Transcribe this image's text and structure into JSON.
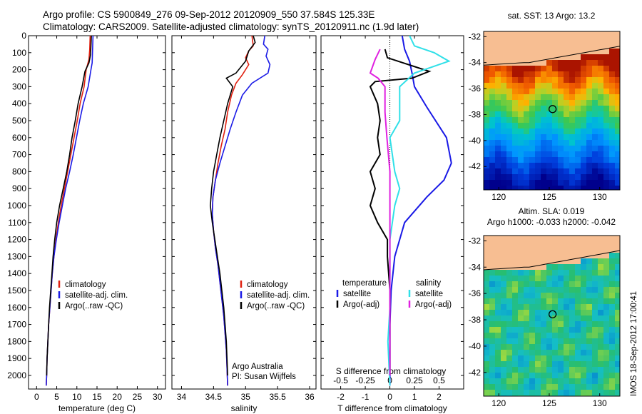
{
  "header": {
    "line1": "Argo profile: CS 5900849_276 09-Sep-2012 20120909_550 37.584S 125.33E",
    "line2": "Climatology: CARS2009. Satellite-adjusted climatology: synTS_20120911.nc (1.9d later)"
  },
  "colors": {
    "climatology": "#e02010",
    "satellite": "#1a1ae6",
    "argo": "#000000",
    "sat_salinity": "#30e0e8",
    "argo_salinity": "#e020e0",
    "land": "#f7be92"
  },
  "side_text": "IMOS 18-Sep-2012 17:00:41",
  "credit": {
    "line1": "Argo Australia",
    "line2": "PI: Susan Wijffels"
  },
  "chart_data": [
    {
      "type": "line",
      "xlabel": "temperature (deg C)",
      "ylabel": "",
      "xlim": [
        -2,
        32
      ],
      "ylim": [
        2080,
        0
      ],
      "xticks": [
        0,
        5,
        10,
        15,
        20,
        25,
        30
      ],
      "yticks": [
        0,
        100,
        200,
        300,
        400,
        500,
        600,
        700,
        800,
        900,
        1000,
        1100,
        1200,
        1300,
        1400,
        1500,
        1600,
        1700,
        1800,
        1900,
        2000
      ],
      "legend": [
        "climatology",
        "satellite-adj. clim.",
        "Argo(..raw -QC)"
      ],
      "series": [
        {
          "name": "climatology",
          "color": "#e02010",
          "points": [
            [
              13.3,
              0
            ],
            [
              13.2,
              80
            ],
            [
              13.0,
              140
            ],
            [
              12.3,
              200
            ],
            [
              11.8,
              300
            ],
            [
              10.8,
              400
            ],
            [
              10.1,
              500
            ],
            [
              9.3,
              600
            ],
            [
              8.5,
              700
            ],
            [
              7.7,
              800
            ],
            [
              6.9,
              900
            ],
            [
              6.1,
              1000
            ],
            [
              5.4,
              1100
            ],
            [
              4.8,
              1200
            ],
            [
              4.3,
              1300
            ],
            [
              3.9,
              1400
            ],
            [
              3.6,
              1500
            ],
            [
              3.3,
              1600
            ],
            [
              3.0,
              1700
            ],
            [
              2.8,
              1800
            ],
            [
              2.6,
              1900
            ],
            [
              2.5,
              2000
            ],
            [
              2.4,
              2060
            ]
          ]
        },
        {
          "name": "satellite-adj. clim.",
          "color": "#1a1ae6",
          "points": [
            [
              14.0,
              0
            ],
            [
              13.9,
              80
            ],
            [
              13.8,
              160
            ],
            [
              13.5,
              200
            ],
            [
              12.8,
              300
            ],
            [
              11.6,
              400
            ],
            [
              10.7,
              500
            ],
            [
              9.9,
              600
            ],
            [
              9.1,
              700
            ],
            [
              8.2,
              800
            ],
            [
              7.2,
              900
            ],
            [
              6.4,
              1000
            ],
            [
              5.6,
              1100
            ],
            [
              4.9,
              1200
            ],
            [
              4.3,
              1300
            ],
            [
              3.9,
              1400
            ],
            [
              3.6,
              1500
            ],
            [
              3.3,
              1600
            ],
            [
              3.0,
              1700
            ],
            [
              2.8,
              1800
            ],
            [
              2.6,
              1900
            ],
            [
              2.5,
              2000
            ],
            [
              2.4,
              2060
            ]
          ]
        },
        {
          "name": "Argo(..raw -QC)",
          "color": "#000000",
          "points": [
            [
              13.6,
              0
            ],
            [
              13.5,
              60
            ],
            [
              13.4,
              110
            ],
            [
              13.0,
              160
            ],
            [
              12.0,
              210
            ],
            [
              11.3,
              300
            ],
            [
              10.3,
              400
            ],
            [
              9.6,
              500
            ],
            [
              8.8,
              600
            ],
            [
              8.2,
              700
            ],
            [
              7.5,
              800
            ],
            [
              6.6,
              900
            ],
            [
              5.7,
              1000
            ],
            [
              5.0,
              1100
            ],
            [
              4.5,
              1200
            ],
            [
              4.1,
              1300
            ],
            [
              3.8,
              1400
            ],
            [
              3.5,
              1500
            ],
            [
              3.2,
              1600
            ],
            [
              3.0,
              1700
            ],
            [
              2.8,
              1800
            ],
            [
              2.6,
              1900
            ],
            [
              2.5,
              2000
            ]
          ]
        }
      ]
    },
    {
      "type": "line",
      "xlabel": "salinity",
      "xlim": [
        33.85,
        36.1
      ],
      "ylim": [
        2080,
        0
      ],
      "xticks": [
        34,
        34.5,
        35,
        35.5,
        36
      ],
      "legend": [
        "climatology",
        "satellite-adj. clim.",
        "Argo(..raw -QC)"
      ],
      "series": [
        {
          "name": "climatology",
          "color": "#e02010",
          "points": [
            [
              35.1,
              0
            ],
            [
              35.12,
              60
            ],
            [
              35.05,
              90
            ],
            [
              35.0,
              130
            ],
            [
              35.05,
              170
            ],
            [
              34.95,
              230
            ],
            [
              34.85,
              280
            ],
            [
              34.78,
              350
            ],
            [
              34.72,
              450
            ],
            [
              34.68,
              550
            ],
            [
              34.62,
              650
            ],
            [
              34.57,
              750
            ],
            [
              34.53,
              850
            ],
            [
              34.49,
              950
            ],
            [
              34.48,
              1050
            ],
            [
              34.5,
              1150
            ],
            [
              34.53,
              1250
            ],
            [
              34.57,
              1350
            ],
            [
              34.6,
              1450
            ],
            [
              34.63,
              1550
            ],
            [
              34.66,
              1650
            ],
            [
              34.68,
              1750
            ],
            [
              34.7,
              1850
            ],
            [
              34.71,
              1950
            ],
            [
              34.72,
              2060
            ]
          ]
        },
        {
          "name": "satellite-adj. clim.",
          "color": "#1a1ae6",
          "points": [
            [
              35.3,
              0
            ],
            [
              35.28,
              50
            ],
            [
              35.35,
              80
            ],
            [
              35.32,
              120
            ],
            [
              35.38,
              170
            ],
            [
              35.35,
              220
            ],
            [
              35.1,
              280
            ],
            [
              34.95,
              350
            ],
            [
              34.85,
              450
            ],
            [
              34.76,
              550
            ],
            [
              34.68,
              650
            ],
            [
              34.6,
              750
            ],
            [
              34.53,
              850
            ],
            [
              34.49,
              950
            ],
            [
              34.48,
              1050
            ],
            [
              34.5,
              1150
            ],
            [
              34.53,
              1250
            ],
            [
              34.57,
              1350
            ],
            [
              34.6,
              1450
            ],
            [
              34.63,
              1550
            ],
            [
              34.66,
              1650
            ],
            [
              34.68,
              1750
            ],
            [
              34.7,
              1850
            ],
            [
              34.71,
              1950
            ],
            [
              34.72,
              2060
            ]
          ]
        },
        {
          "name": "Argo(..raw -QC)",
          "color": "#000000",
          "points": [
            [
              35.12,
              0
            ],
            [
              35.15,
              40
            ],
            [
              35.05,
              90
            ],
            [
              35.0,
              150
            ],
            [
              34.85,
              220
            ],
            [
              34.7,
              250
            ],
            [
              34.8,
              300
            ],
            [
              34.72,
              400
            ],
            [
              34.66,
              500
            ],
            [
              34.6,
              600
            ],
            [
              34.55,
              700
            ],
            [
              34.5,
              800
            ],
            [
              34.47,
              900
            ],
            [
              34.45,
              1000
            ],
            [
              34.48,
              1100
            ],
            [
              34.52,
              1200
            ],
            [
              34.56,
              1300
            ],
            [
              34.6,
              1400
            ],
            [
              34.63,
              1500
            ],
            [
              34.66,
              1600
            ],
            [
              34.68,
              1700
            ],
            [
              34.7,
              1800
            ],
            [
              34.71,
              1900
            ],
            [
              34.72,
              2000
            ]
          ]
        }
      ]
    },
    {
      "type": "line",
      "xlabel": "T difference from climatology",
      "xlabel2": "S difference from climatology",
      "xlim": [
        -2.8,
        3.0
      ],
      "ylim": [
        2080,
        0
      ],
      "xticks": [
        -2,
        -1,
        0,
        1,
        2
      ],
      "xticks2": [
        -0.5,
        -0.25,
        0,
        0.25,
        0.5
      ],
      "xtick2_labels": [
        "-0.5",
        "-0.25",
        "0",
        "0.25",
        "0.5"
      ],
      "legend_left_title": "temperature",
      "legend_left": [
        "satellite",
        "Argo(-adj)"
      ],
      "legend_right_title": "salinity",
      "legend_right": [
        "satellite",
        "Argo(-adj)"
      ],
      "series": [
        {
          "name": "satellite",
          "quantity": "temperature",
          "color": "#1a1ae6",
          "points": [
            [
              0.5,
              0
            ],
            [
              0.6,
              80
            ],
            [
              0.8,
              150
            ],
            [
              0.9,
              220
            ],
            [
              1.0,
              300
            ],
            [
              1.5,
              420
            ],
            [
              2.3,
              600
            ],
            [
              2.5,
              750
            ],
            [
              2.2,
              850
            ],
            [
              1.5,
              950
            ],
            [
              0.6,
              1100
            ],
            [
              0.2,
              1300
            ],
            [
              0.05,
              1500
            ],
            [
              0.0,
              1700
            ],
            [
              0.0,
              2060
            ]
          ]
        },
        {
          "name": "Argo(-adj)",
          "quantity": "temperature",
          "color": "#000000",
          "points": [
            [
              -0.2,
              80
            ],
            [
              -0.1,
              130
            ],
            [
              1.6,
              210
            ],
            [
              0.9,
              250
            ],
            [
              -0.6,
              270
            ],
            [
              -0.8,
              300
            ],
            [
              -0.5,
              400
            ],
            [
              -0.4,
              500
            ],
            [
              -0.5,
              600
            ],
            [
              -0.4,
              700
            ],
            [
              -0.8,
              800
            ],
            [
              -0.6,
              900
            ],
            [
              -0.8,
              1000
            ],
            [
              -0.5,
              1100
            ],
            [
              -0.1,
              1200
            ],
            [
              -0.1,
              1300
            ],
            [
              0.0,
              1500
            ],
            [
              0.0,
              2000
            ]
          ]
        },
        {
          "name": "satellite",
          "quantity": "salinity",
          "color": "#30e0e8",
          "points": [
            [
              0.2,
              0
            ],
            [
              0.25,
              60
            ],
            [
              0.45,
              100
            ],
            [
              0.6,
              150
            ],
            [
              0.25,
              220
            ],
            [
              0.1,
              300
            ],
            [
              0.1,
              400
            ],
            [
              0.1,
              500
            ],
            [
              0.0,
              600
            ],
            [
              0.05,
              800
            ],
            [
              0.1,
              900
            ],
            [
              0.05,
              1000
            ],
            [
              0.0,
              1200
            ],
            [
              0.0,
              1600
            ],
            [
              -0.02,
              1800
            ],
            [
              0.0,
              2060
            ]
          ]
        },
        {
          "name": "Argo(-adj)",
          "quantity": "salinity",
          "color": "#e020e0",
          "points": [
            [
              -0.1,
              80
            ],
            [
              -0.15,
              140
            ],
            [
              -0.2,
              220
            ],
            [
              -0.12,
              250
            ],
            [
              -0.05,
              300
            ],
            [
              -0.05,
              450
            ],
            [
              -0.03,
              600
            ],
            [
              0.0,
              800
            ],
            [
              0.0,
              1200
            ],
            [
              0.0,
              2000
            ]
          ]
        }
      ]
    },
    {
      "type": "heatmap",
      "title": "sat. SST: 13 Argo: 13.2",
      "xlim": [
        118.5,
        132
      ],
      "ylim": [
        -43.8,
        -31.6
      ],
      "xticks": [
        120,
        125,
        130
      ],
      "yticks": [
        -32,
        -34,
        -36,
        -38,
        -40,
        -42
      ],
      "marker": {
        "lon": 125.33,
        "lat": -37.58
      }
    },
    {
      "type": "heatmap",
      "title_line1": "Altim. SLA: 0.019",
      "title_line2": "Argo h1000: -0.033 h2000: -0.042",
      "xlim": [
        118.5,
        132
      ],
      "ylim": [
        -43.8,
        -31.6
      ],
      "xticks": [
        120,
        125,
        130
      ],
      "yticks": [
        -32,
        -34,
        -36,
        -38,
        -40,
        -42
      ],
      "marker": {
        "lon": 125.33,
        "lat": -37.58
      }
    }
  ]
}
